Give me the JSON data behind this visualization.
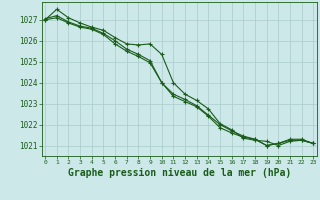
{
  "x": [
    0,
    1,
    2,
    3,
    4,
    5,
    6,
    7,
    8,
    9,
    10,
    11,
    12,
    13,
    14,
    15,
    16,
    17,
    18,
    19,
    20,
    21,
    22,
    23
  ],
  "line1": [
    1027.0,
    1027.5,
    1027.1,
    1026.85,
    1026.65,
    1026.5,
    1026.15,
    1025.85,
    1025.8,
    1025.85,
    1025.35,
    1024.0,
    1023.45,
    1023.15,
    1022.75,
    1022.05,
    1021.75,
    1021.35,
    1021.25,
    1021.2,
    1021.0,
    1021.2,
    1021.25,
    1021.1
  ],
  "line2": [
    1027.05,
    1027.2,
    1026.9,
    1026.7,
    1026.6,
    1026.35,
    1026.0,
    1025.6,
    1025.35,
    1025.05,
    1024.0,
    1023.45,
    1023.2,
    1022.9,
    1022.45,
    1022.0,
    1021.7,
    1021.45,
    1021.3,
    1021.0,
    1021.1,
    1021.25,
    1021.25,
    1021.1
  ],
  "line3": [
    1027.0,
    1027.1,
    1026.85,
    1026.65,
    1026.55,
    1026.3,
    1025.85,
    1025.5,
    1025.25,
    1024.95,
    1024.0,
    1023.35,
    1023.1,
    1022.85,
    1022.4,
    1021.85,
    1021.6,
    1021.4,
    1021.3,
    1021.0,
    1021.1,
    1021.3,
    1021.3,
    1021.1
  ],
  "ylim_bottom": 1020.5,
  "ylim_top": 1027.85,
  "yticks": [
    1021,
    1022,
    1023,
    1024,
    1025,
    1026,
    1027
  ],
  "xticks": [
    0,
    1,
    2,
    3,
    4,
    5,
    6,
    7,
    8,
    9,
    10,
    11,
    12,
    13,
    14,
    15,
    16,
    17,
    18,
    19,
    20,
    21,
    22,
    23
  ],
  "line_color": "#1a5c1a",
  "bg_color": "#cce8e8",
  "grid_color": "#aacccc",
  "xlabel": "Graphe pression niveau de la mer (hPa)",
  "xlabel_fontsize": 7,
  "ytick_fontsize": 5.5,
  "xtick_fontsize": 4.5,
  "marker": "+",
  "markersize": 3.5,
  "linewidth": 0.8
}
